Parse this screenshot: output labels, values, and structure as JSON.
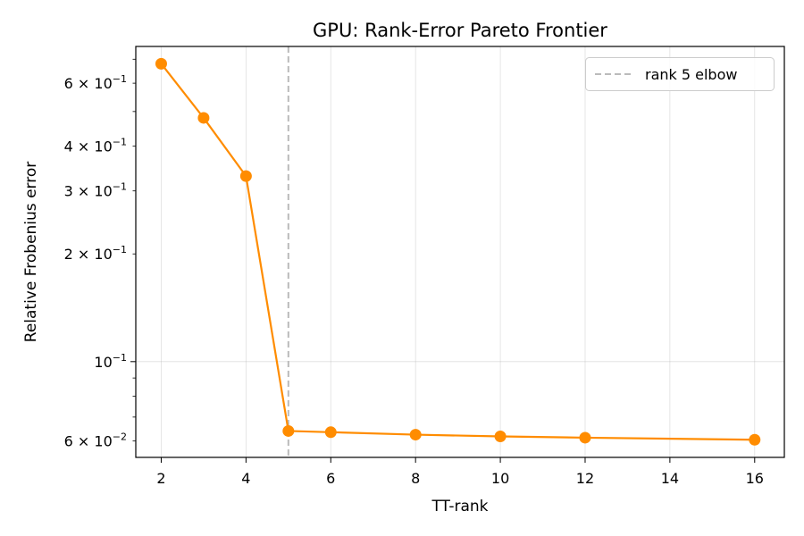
{
  "chart_data": {
    "type": "line",
    "title": "GPU: Rank-Error Pareto Frontier",
    "xlabel": "TT-rank",
    "ylabel": "Relative Frobenius error",
    "xlim": [
      1.4,
      16.7
    ],
    "ylim": [
      0.054,
      0.76
    ],
    "yscale": "log",
    "grid": true,
    "legend_position": "top-right",
    "xticks": [
      2,
      4,
      6,
      8,
      10,
      12,
      14,
      16
    ],
    "xtick_labels": [
      "2",
      "4",
      "6",
      "8",
      "10",
      "12",
      "14",
      "16"
    ],
    "yticks": [
      {
        "value": 0.06,
        "mantissa": "6",
        "exponent": "−2"
      },
      {
        "value": 0.1,
        "mantissa": "",
        "exponent": "−1"
      },
      {
        "value": 0.2,
        "mantissa": "2",
        "exponent": "−1"
      },
      {
        "value": 0.3,
        "mantissa": "3",
        "exponent": "−1"
      },
      {
        "value": 0.4,
        "mantissa": "4",
        "exponent": "−1"
      },
      {
        "value": 0.6,
        "mantissa": "6",
        "exponent": "−1"
      }
    ],
    "series": [
      {
        "color": "#ff8c00",
        "x": [
          2,
          3,
          4,
          5,
          6,
          8,
          10,
          12,
          16
        ],
        "y": [
          0.68,
          0.48,
          0.33,
          0.064,
          0.0635,
          0.0625,
          0.0618,
          0.0613,
          0.0605
        ]
      }
    ],
    "reference_lines": [
      {
        "x": 5,
        "label": "rank 5 elbow",
        "color": "#bbbbbb",
        "style": "dashed"
      }
    ]
  }
}
